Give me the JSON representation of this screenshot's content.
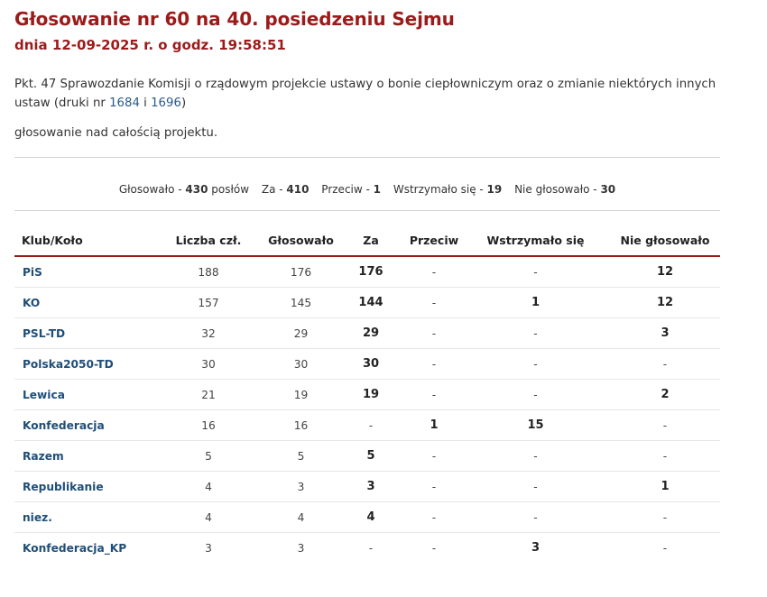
{
  "header": {
    "title": "Głosowanie nr 60 na 40. posiedzeniu Sejmu",
    "subtitle": "dnia 12-09-2025 r. o godz. 19:58:51"
  },
  "description": {
    "text_before": "Pkt. 47 Sprawozdanie Komisji o rządowym projekcie ustawy o bonie ciepłowniczym oraz o zmianie niektórych innych ustaw (druki nr ",
    "link1": "1684",
    "between": " i ",
    "link2": "1696",
    "text_after": ")"
  },
  "topic": "głosowanie nad całością projektu.",
  "summary": {
    "voted_label": "Głosowało - ",
    "voted_value": "430",
    "voted_unit": " posłów",
    "for_label": "Za - ",
    "for_value": "410",
    "against_label": "Przeciw - ",
    "against_value": "1",
    "abstain_label": "Wstrzymało się - ",
    "abstain_value": "19",
    "novote_label": "Nie głosowało - ",
    "novote_value": "30"
  },
  "table": {
    "headers": [
      "Klub/Koło",
      "Liczba czł.",
      "Głosowało",
      "Za",
      "Przeciw",
      "Wstrzymało się",
      "Nie głosowało"
    ],
    "rows": [
      [
        "PiS",
        "188",
        "176",
        "176",
        "-",
        "-",
        "12"
      ],
      [
        "KO",
        "157",
        "145",
        "144",
        "-",
        "1",
        "12"
      ],
      [
        "PSL-TD",
        "32",
        "29",
        "29",
        "-",
        "-",
        "3"
      ],
      [
        "Polska2050-TD",
        "30",
        "30",
        "30",
        "-",
        "-",
        "-"
      ],
      [
        "Lewica",
        "21",
        "19",
        "19",
        "-",
        "-",
        "2"
      ],
      [
        "Konfederacja",
        "16",
        "16",
        "-",
        "1",
        "15",
        "-"
      ],
      [
        "Razem",
        "5",
        "5",
        "5",
        "-",
        "-",
        "-"
      ],
      [
        "Republikanie",
        "4",
        "3",
        "3",
        "-",
        "-",
        "1"
      ],
      [
        "niez.",
        "4",
        "4",
        "4",
        "-",
        "-",
        "-"
      ],
      [
        "Konfederacja_KP",
        "3",
        "3",
        "-",
        "-",
        "3",
        "-"
      ]
    ]
  }
}
